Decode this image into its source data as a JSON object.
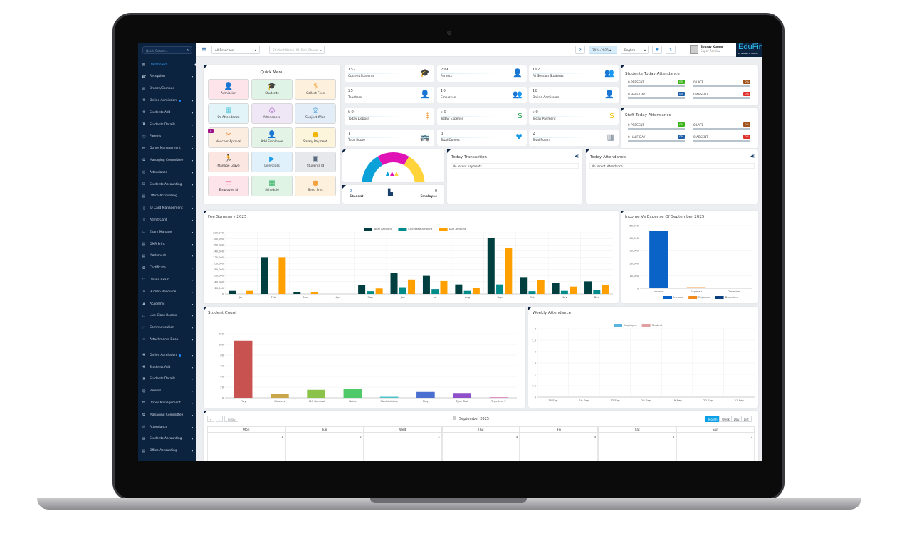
{
  "sidebar": {
    "search_placeholder": "Quick Search...",
    "items": [
      {
        "label": "Dashboard",
        "icon": "dashboard-icon",
        "active": true
      },
      {
        "label": "Reception",
        "icon": "reception-icon",
        "caret": true
      },
      {
        "label": "Branch/Campus",
        "icon": "building-icon"
      },
      {
        "label": "Online Admission",
        "icon": "user-plus-icon",
        "caret": true,
        "dot": true
      },
      {
        "label": "Students Add",
        "icon": "user-plus-icon",
        "caret": true
      },
      {
        "label": "Students Details",
        "icon": "student-icon",
        "caret": true
      },
      {
        "label": "Parents",
        "icon": "users-icon",
        "caret": true
      },
      {
        "label": "Donor Management",
        "icon": "donor-icon",
        "caret": true
      },
      {
        "label": "Managing Committee",
        "icon": "committee-icon",
        "caret": true
      },
      {
        "label": "Attendance",
        "icon": "fingerprint-icon",
        "caret": true
      },
      {
        "label": "Students Accounting",
        "icon": "accounting-icon",
        "caret": true
      },
      {
        "label": "Office Accounting",
        "icon": "calculator-icon",
        "caret": true
      },
      {
        "label": "ID Card Management",
        "icon": "id-card-icon",
        "caret": true
      },
      {
        "label": "Admit Card",
        "icon": "admit-card-icon",
        "caret": true
      },
      {
        "label": "Exam Manage",
        "icon": "book-icon",
        "caret": true
      },
      {
        "label": "OMR Print",
        "icon": "print-icon",
        "caret": true
      },
      {
        "label": "Marksheet",
        "icon": "document-icon",
        "caret": true
      },
      {
        "label": "Certificate",
        "icon": "certificate-icon",
        "caret": true
      },
      {
        "label": "Online Exam",
        "icon": "exam-icon",
        "caret": true
      },
      {
        "label": "Human Resource",
        "icon": "hr-icon",
        "caret": true
      },
      {
        "label": "Academic",
        "icon": "academic-icon",
        "caret": true
      },
      {
        "label": "Live Class Rooms",
        "icon": "video-icon",
        "caret": true
      },
      {
        "label": "Communication",
        "icon": "chat-icon",
        "caret": true
      },
      {
        "label": "Attachments Book",
        "icon": "paperclip-icon",
        "caret": true
      },
      {
        "label": "Online Admission",
        "icon": "user-plus-icon",
        "caret": true,
        "dot": true
      },
      {
        "label": "Students Add",
        "icon": "user-plus-icon",
        "caret": true
      },
      {
        "label": "Students Details",
        "icon": "student-icon",
        "caret": true
      },
      {
        "label": "Parents",
        "icon": "users-icon",
        "caret": true
      },
      {
        "label": "Donor Management",
        "icon": "donor-icon",
        "caret": true
      },
      {
        "label": "Managing Committee",
        "icon": "committee-icon",
        "caret": true
      },
      {
        "label": "Attendance",
        "icon": "fingerprint-icon",
        "caret": true
      },
      {
        "label": "Students Accounting",
        "icon": "accounting-icon",
        "caret": true
      },
      {
        "label": "Office Accounting",
        "icon": "calculator-icon",
        "caret": true
      }
    ]
  },
  "topbar": {
    "branch": "All Branches",
    "search_placeholder": "Student Name, ID, Roll, Phone",
    "session": "2024-2025",
    "language": "English",
    "user_name": "Sourav Kumar",
    "user_role": "Super Admin",
    "logo": "EduFin",
    "logo_sub": "by NexGen & SEBPLC"
  },
  "quick_menu": {
    "title": "Quick Menu",
    "items": [
      {
        "label": "Admission",
        "icon": "user-plus-icon",
        "bg": "#fde4ea",
        "color": "#f0567b",
        "glyph": "👤"
      },
      {
        "label": "Students",
        "icon": "graduate-icon",
        "bg": "#dff3e6",
        "color": "#1e9e4a",
        "glyph": "🎓"
      },
      {
        "label": "Collect Fees",
        "icon": "money-bag-icon",
        "bg": "#fdf0dc",
        "color": "#f4a340",
        "glyph": "$"
      },
      {
        "label": "Qr Attendance",
        "icon": "qr-icon",
        "bg": "#e3f4f8",
        "color": "#4cc3d6",
        "glyph": "▦"
      },
      {
        "label": "Attendance",
        "icon": "fingerprint-icon",
        "bg": "#efe6f6",
        "color": "#9b59b6",
        "glyph": "◎"
      },
      {
        "label": "Subject Wise",
        "icon": "fingerprint-icon",
        "bg": "#e3edf7",
        "color": "#2b8fd6",
        "glyph": "◎"
      },
      {
        "label": "Voucher Aproval",
        "icon": "voucher-icon",
        "bg": "#fbeee0",
        "color": "#f08a3c",
        "glyph": "✂",
        "badge": "0"
      },
      {
        "label": "Add Employee",
        "icon": "employee-icon",
        "bg": "#e3f4e7",
        "color": "#3bb36a",
        "glyph": "👤"
      },
      {
        "label": "Salary Payment",
        "icon": "salary-icon",
        "bg": "#fdf4dc",
        "color": "#f2b705",
        "glyph": "●"
      },
      {
        "label": "Manage Leave",
        "icon": "exit-icon",
        "bg": "#fbe6e1",
        "color": "#e0443a",
        "glyph": "🏃"
      },
      {
        "label": "Live Class",
        "icon": "video-icon",
        "bg": "#e1f1fb",
        "color": "#1a9be8",
        "glyph": "▶"
      },
      {
        "label": "Students Id",
        "icon": "id-badge-icon",
        "bg": "#e6e8ec",
        "color": "#5a6a7e",
        "glyph": "▣"
      },
      {
        "label": "Employee Id",
        "icon": "id-card-icon",
        "bg": "#fde4ea",
        "color": "#f0567b",
        "glyph": "▭"
      },
      {
        "label": "Schedule",
        "icon": "calendar-icon",
        "bg": "#e0f4e6",
        "color": "#3bb36a",
        "glyph": "▦"
      },
      {
        "label": "Send Sms",
        "icon": "chat-icon",
        "bg": "#fdf0dc",
        "color": "#f4a340",
        "glyph": "●"
      }
    ]
  },
  "stats": [
    {
      "value": "157",
      "label": "Current Students",
      "icon": "graduate-icon",
      "color": "#f0567b",
      "glyph": "🎓"
    },
    {
      "value": "299",
      "label": "Parents",
      "icon": "parent-icon",
      "color": "#1e9e4a",
      "glyph": "👤"
    },
    {
      "value": "192",
      "label": "All Session Students",
      "icon": "group-icon",
      "color": "#f4a340",
      "glyph": "👥"
    },
    {
      "value": "25",
      "label": "Teachers",
      "icon": "teacher-icon",
      "color": "#4cc3d6",
      "glyph": "👤"
    },
    {
      "value": "10",
      "label": "Employee",
      "icon": "employee-icon",
      "color": "#9b59b6",
      "glyph": "👥"
    },
    {
      "value": "16",
      "label": "Online Admission",
      "icon": "user-plus-icon",
      "color": "#2b8fd6",
      "glyph": "👤"
    },
    {
      "value": "৳ 0",
      "label": "Today Deposit",
      "icon": "money-bag-icon",
      "color": "#f4a340",
      "glyph": "$"
    },
    {
      "value": "৳ 0",
      "label": "Today Expense",
      "icon": "cash-hand-icon",
      "color": "#1e9e4a",
      "glyph": "$"
    },
    {
      "value": "৳ 0",
      "label": "Today Payment",
      "icon": "money-bag-icon",
      "color": "#f2c200",
      "glyph": "$"
    },
    {
      "value": "1",
      "label": "Total Route",
      "icon": "bus-icon",
      "color": "#e0443a",
      "glyph": "🚌"
    },
    {
      "value": "3",
      "label": "Total Donors",
      "icon": "heart-hands-icon",
      "color": "#1a9be8",
      "glyph": "♥"
    },
    {
      "value": "2",
      "label": "Total Room",
      "icon": "building-icon",
      "color": "#5a6a7e",
      "glyph": "▥"
    }
  ],
  "students_attendance": {
    "title": "Students Today Attendance",
    "rows": [
      {
        "label": "0 PRESENT",
        "pct": "0%",
        "color": "#3bb31a"
      },
      {
        "label": "0 LATE",
        "pct": "0%",
        "color": "#a0521a"
      },
      {
        "label": "0 HALF DAY",
        "pct": "0%",
        "color": "#1f5fa8"
      },
      {
        "label": "0 ABSENT",
        "pct": "0%",
        "color": "#e0302a"
      }
    ]
  },
  "staff_attendance": {
    "title": "Staff Today Attendance",
    "rows": [
      {
        "label": "0 PRESENT",
        "pct": "0%",
        "color": "#3bb31a"
      },
      {
        "label": "0 LATE",
        "pct": "0%",
        "color": "#a0521a"
      },
      {
        "label": "0 HALF DAY",
        "pct": "0%",
        "color": "#1f5fa8"
      },
      {
        "label": "0 ABSENT",
        "pct": "0%",
        "color": "#e0302a"
      }
    ]
  },
  "gauge": {
    "colors": [
      "#0aa0d8",
      "#e012b6",
      "#ffd43b"
    ]
  },
  "counts": {
    "student_value": "0",
    "student_label": "Student",
    "employee_value": "0",
    "employee_label": "Employee"
  },
  "today_transaction": {
    "title": "Today Transaction",
    "empty": "No recent payments"
  },
  "today_attendance": {
    "title": "Today Attendance",
    "empty": "No recent attendance"
  },
  "chart_data": [
    {
      "type": "bar",
      "title": "Fee Summary 2025",
      "ylim": [
        0,
        200000
      ],
      "ytick_step": 20000,
      "legend": "top-center",
      "categories": [
        "Jan",
        "Feb",
        "Mar",
        "Apr",
        "May",
        "Jun",
        "Jul",
        "Aug",
        "Sep",
        "Oct",
        "Nov",
        "Dec"
      ],
      "series": [
        {
          "name": "Total Amount",
          "color": "#003f3f",
          "values": [
            10000,
            120000,
            5000,
            0,
            28000,
            68000,
            59000,
            31000,
            183000,
            55000,
            36000,
            41000
          ]
        },
        {
          "name": "Collected Amount",
          "color": "#008b8b",
          "values": [
            0,
            0,
            0,
            0,
            9000,
            22000,
            16000,
            10000,
            31000,
            9000,
            10000,
            12000
          ]
        },
        {
          "name": "Due Amount",
          "color": "#ff9f00",
          "values": [
            10000,
            120000,
            5000,
            0,
            18000,
            47000,
            42000,
            20000,
            151000,
            46000,
            24000,
            29000
          ]
        }
      ]
    },
    {
      "type": "bar",
      "title": "Income Vs Expense Of September 2025",
      "ylim": [
        0,
        50000
      ],
      "ytick_step": 10000,
      "legend": "bottom",
      "categories": [
        "Income",
        "Expense",
        "Donation"
      ],
      "series": [
        {
          "name": "Income",
          "color": "#0a63c7",
          "values": [
            45500,
            800,
            0
          ]
        }
      ],
      "legend_items": [
        {
          "name": "Income",
          "color": "#0a63c7"
        },
        {
          "name": "Expense",
          "color": "#f08a1a"
        },
        {
          "name": "Donation",
          "color": "#0c3f80"
        }
      ],
      "bar_colors": [
        "#0a63c7",
        "#f08a1a",
        "#0c3f80"
      ]
    },
    {
      "type": "bar",
      "title": "Student Count",
      "ylim": [
        0,
        120
      ],
      "ytick_step": 20,
      "categories": [
        "Play",
        "Masters",
        "HSC General",
        "Daira",
        "Machimbling",
        "Play",
        "Type Test",
        "Type test 2"
      ],
      "series": [
        {
          "values": [
            107,
            7,
            15,
            16,
            2,
            11,
            9,
            1
          ]
        }
      ],
      "bar_colors": [
        "#c85250",
        "#c9a64a",
        "#8bc34a",
        "#4fc96a",
        "#4cc3c9",
        "#4a6fd0",
        "#8e4fc8",
        "#d46ab0"
      ]
    },
    {
      "type": "bar",
      "title": "Weekly Attendance",
      "ylim": [
        0,
        3
      ],
      "ytick_step": 0.5,
      "legend": "top-center",
      "categories": [
        "15-Sep",
        "16-Sep",
        "17-Sep",
        "18-Sep",
        "19-Sep",
        "20-Sep",
        "21-Sep"
      ],
      "series": [
        {
          "name": "Employee",
          "color": "#5ab4e0",
          "values": [
            0,
            0,
            0,
            0,
            0,
            0,
            0
          ]
        },
        {
          "name": "Student",
          "color": "#e0a0a0",
          "values": [
            0,
            0,
            0,
            0,
            0,
            0,
            0
          ]
        }
      ]
    }
  ],
  "calendar": {
    "title": "September 2025",
    "today": "Today",
    "prev": "‹",
    "next": "›",
    "views": [
      "Month",
      "Week",
      "Day",
      "List"
    ],
    "active_view": "Month",
    "days": [
      "Mon",
      "Tue",
      "Wed",
      "Thu",
      "Fri",
      "Sat",
      "Sun"
    ],
    "dates": [
      "1",
      "2",
      "3",
      "4",
      "5",
      "6",
      "7"
    ]
  }
}
